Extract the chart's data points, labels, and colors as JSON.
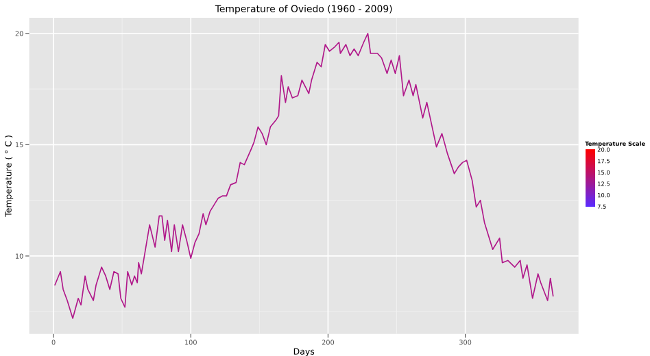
{
  "chart_data": {
    "type": "line",
    "title": "Temperature of Oviedo (1960 - 2009)",
    "xlabel": "Days",
    "ylabel": "Temperature ( ° C )",
    "clabel": "Temperature Scale",
    "x": [
      1,
      5,
      7,
      10,
      14,
      18,
      20,
      23,
      25,
      29,
      31,
      35,
      38,
      41,
      44,
      47,
      49,
      52,
      54,
      57,
      59,
      61,
      62,
      64,
      70,
      74,
      77,
      79,
      81,
      83,
      86,
      88,
      91,
      94,
      97,
      100,
      103,
      106,
      109,
      111,
      114,
      120,
      123,
      126,
      129,
      133,
      136,
      139,
      144,
      146,
      149,
      152,
      155,
      158,
      162,
      164,
      166,
      169,
      171,
      174,
      178,
      181,
      186,
      188,
      192,
      195,
      198,
      201,
      205,
      208,
      209,
      213,
      216,
      219,
      222,
      226,
      229,
      231,
      236,
      239,
      243,
      246,
      249,
      252,
      255,
      259,
      262,
      264,
      269,
      272,
      279,
      283,
      287,
      292,
      295,
      298,
      301,
      305,
      308,
      311,
      314,
      320,
      325,
      327,
      331,
      336,
      340,
      342,
      345,
      349,
      353,
      355,
      360,
      362,
      364
    ],
    "color": "#b0188a",
    "values": [
      8.7,
      9.3,
      8.5,
      8.0,
      7.2,
      8.1,
      7.8,
      9.1,
      8.5,
      8.0,
      8.7,
      9.5,
      9.1,
      8.5,
      9.3,
      9.2,
      8.1,
      7.7,
      9.3,
      8.7,
      9.1,
      8.8,
      9.7,
      9.2,
      11.4,
      10.4,
      11.8,
      11.8,
      10.7,
      11.6,
      10.2,
      11.4,
      10.2,
      11.4,
      10.7,
      9.9,
      10.6,
      11.0,
      11.9,
      11.4,
      12.0,
      12.6,
      12.7,
      12.7,
      13.2,
      13.3,
      14.2,
      14.1,
      14.8,
      15.1,
      15.8,
      15.5,
      15.0,
      15.8,
      16.1,
      16.3,
      18.1,
      16.9,
      17.6,
      17.1,
      17.2,
      17.9,
      17.3,
      17.9,
      18.7,
      18.5,
      19.5,
      19.2,
      19.4,
      19.6,
      19.1,
      19.5,
      19.0,
      19.3,
      19.0,
      19.6,
      20.0,
      19.1,
      19.1,
      18.9,
      18.2,
      18.8,
      18.2,
      19.0,
      17.2,
      17.9,
      17.2,
      17.7,
      16.2,
      16.9,
      14.9,
      15.5,
      14.6,
      13.7,
      14.0,
      14.2,
      14.3,
      13.4,
      12.2,
      12.5,
      11.5,
      10.3,
      10.8,
      9.7,
      9.8,
      9.5,
      9.8,
      9.0,
      9.6,
      8.1,
      9.2,
      8.8,
      8.0,
      9.0,
      8.2
    ],
    "xlim": [
      -17.7,
      382.5
    ],
    "ylim": [
      6.5,
      20.7
    ],
    "xticks": [
      0,
      100,
      200,
      300
    ],
    "yticks": [
      10,
      15,
      20
    ],
    "clim": [
      7.5,
      20
    ],
    "cticks": [
      {
        "value": 7.5,
        "label": "7.5"
      },
      {
        "value": 10,
        "label": "10.0"
      },
      {
        "value": 12.5,
        "label": "12.5"
      },
      {
        "value": 15,
        "label": "15.0"
      },
      {
        "value": 17.5,
        "label": "17.5"
      },
      {
        "value": 20,
        "label": "20.0"
      }
    ],
    "grid": true
  }
}
